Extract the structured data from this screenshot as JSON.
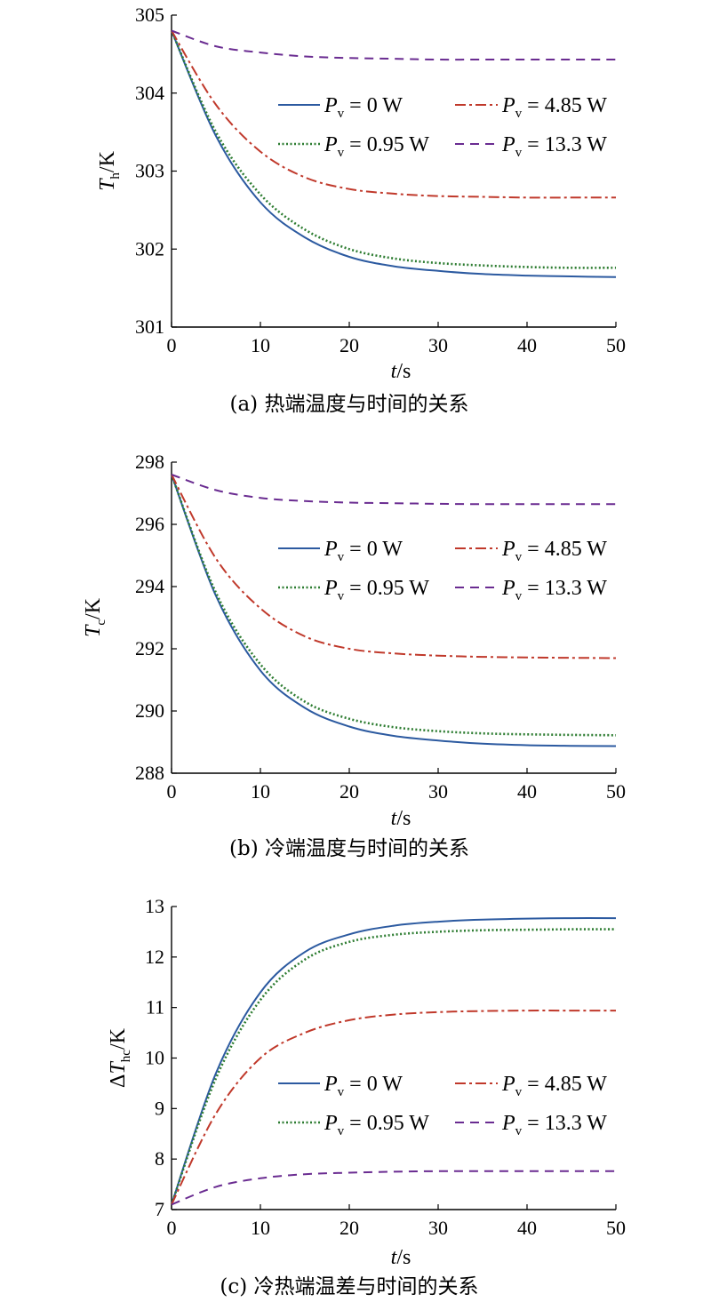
{
  "figure": {
    "legend_entries": [
      {
        "name": "Pv = 0 W",
        "symbol": "P",
        "sub": "v",
        "value_text": " = 0 W",
        "color": "#2c5aa0",
        "dash": "solid"
      },
      {
        "name": "Pv = 4.85 W",
        "symbol": "P",
        "sub": "v",
        "value_text": " = 4.85 W",
        "color": "#c0392b",
        "dash": "dashdot"
      },
      {
        "name": "Pv = 0.95 W",
        "symbol": "P",
        "sub": "v",
        "value_text": " = 0.95 W",
        "color": "#2e7d32",
        "dash": "dotted"
      },
      {
        "name": "Pv = 13.3 W",
        "symbol": "P",
        "sub": "v",
        "value_text": " = 13.3 W",
        "color": "#6a2c91",
        "dash": "dashed"
      }
    ]
  },
  "chart_data": [
    {
      "type": "line",
      "caption": "(a) 热端温度与时间的关系",
      "xlabel": {
        "italic": "t",
        "rest": "/s"
      },
      "ylabel": {
        "prefix": "",
        "italic": "T",
        "sub": "h",
        "rest": "/K"
      },
      "xlim": [
        0,
        50
      ],
      "ylim": [
        301,
        305
      ],
      "xticks": [
        0,
        10,
        20,
        30,
        40,
        50
      ],
      "yticks": [
        301,
        302,
        303,
        304,
        305
      ],
      "grid": false,
      "legend_position": "upper-right",
      "x": [
        0,
        5,
        10,
        15,
        20,
        25,
        30,
        35,
        40,
        45,
        50
      ],
      "series": [
        {
          "name": "Pv = 0 W",
          "values": [
            304.8,
            303.45,
            302.6,
            302.15,
            301.9,
            301.78,
            301.72,
            301.68,
            301.66,
            301.65,
            301.64
          ]
        },
        {
          "name": "Pv = 0.95 W",
          "values": [
            304.8,
            303.5,
            302.7,
            302.25,
            302.0,
            301.88,
            301.82,
            301.79,
            301.77,
            301.76,
            301.76
          ]
        },
        {
          "name": "Pv = 4.85 W",
          "values": [
            304.8,
            303.85,
            303.25,
            302.92,
            302.77,
            302.71,
            302.68,
            302.67,
            302.66,
            302.66,
            302.66
          ]
        },
        {
          "name": "Pv = 13.3 W",
          "values": [
            304.8,
            304.6,
            304.52,
            304.47,
            304.45,
            304.44,
            304.43,
            304.43,
            304.43,
            304.43,
            304.43
          ]
        }
      ]
    },
    {
      "type": "line",
      "caption": "(b) 冷端温度与时间的关系",
      "xlabel": {
        "italic": "t",
        "rest": "/s"
      },
      "ylabel": {
        "prefix": "",
        "italic": "T",
        "sub": "c",
        "rest": "/K"
      },
      "xlim": [
        0,
        50
      ],
      "ylim": [
        288,
        298
      ],
      "xticks": [
        0,
        10,
        20,
        30,
        40,
        50
      ],
      "yticks": [
        288,
        290,
        292,
        294,
        296,
        298
      ],
      "grid": false,
      "legend_position": "upper-right",
      "x": [
        0,
        5,
        10,
        15,
        20,
        25,
        30,
        35,
        40,
        45,
        50
      ],
      "series": [
        {
          "name": "Pv = 0 W",
          "values": [
            297.6,
            293.7,
            291.3,
            290.1,
            289.5,
            289.2,
            289.05,
            288.95,
            288.9,
            288.88,
            288.87
          ]
        },
        {
          "name": "Pv = 0.95 W",
          "values": [
            297.6,
            293.8,
            291.5,
            290.3,
            289.75,
            289.48,
            289.35,
            289.28,
            289.25,
            289.23,
            289.22
          ]
        },
        {
          "name": "Pv = 4.85 W",
          "values": [
            297.6,
            294.9,
            293.3,
            292.4,
            292.0,
            291.85,
            291.78,
            291.74,
            291.72,
            291.71,
            291.7
          ]
        },
        {
          "name": "Pv = 13.3 W",
          "values": [
            297.6,
            297.1,
            296.85,
            296.75,
            296.7,
            296.68,
            296.66,
            296.65,
            296.65,
            296.65,
            296.65
          ]
        }
      ]
    },
    {
      "type": "line",
      "caption": "(c) 冷热端温差与时间的关系",
      "xlabel": {
        "italic": "t",
        "rest": "/s"
      },
      "ylabel": {
        "prefix": "Δ",
        "italic": "T",
        "sub": "hc",
        "rest": "/K"
      },
      "xlim": [
        0,
        50
      ],
      "ylim": [
        7,
        13
      ],
      "xticks": [
        0,
        10,
        20,
        30,
        40,
        50
      ],
      "yticks": [
        7,
        8,
        9,
        10,
        11,
        12,
        13
      ],
      "grid": false,
      "legend_position": "lower-right",
      "x": [
        0,
        5,
        10,
        15,
        20,
        25,
        30,
        35,
        40,
        45,
        50
      ],
      "series": [
        {
          "name": "Pv = 0 W",
          "values": [
            7.1,
            9.7,
            11.3,
            12.1,
            12.45,
            12.62,
            12.7,
            12.74,
            12.76,
            12.77,
            12.77
          ]
        },
        {
          "name": "Pv = 0.95 W",
          "values": [
            7.1,
            9.6,
            11.15,
            11.95,
            12.3,
            12.44,
            12.5,
            12.53,
            12.54,
            12.55,
            12.55
          ]
        },
        {
          "name": "Pv = 4.85 W",
          "values": [
            7.1,
            8.9,
            10.0,
            10.5,
            10.75,
            10.86,
            10.91,
            10.93,
            10.94,
            10.94,
            10.94
          ]
        },
        {
          "name": "Pv = 13.3 W",
          "values": [
            7.1,
            7.45,
            7.62,
            7.7,
            7.73,
            7.75,
            7.76,
            7.76,
            7.76,
            7.76,
            7.76
          ]
        }
      ]
    }
  ]
}
